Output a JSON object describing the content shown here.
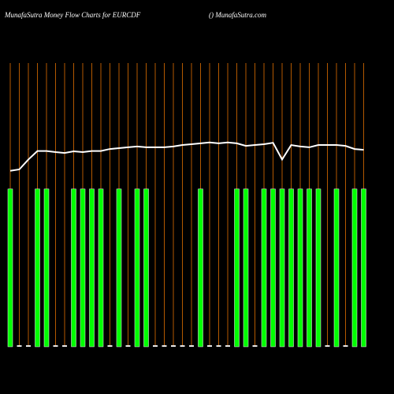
{
  "chart_data": {
    "type": "bar",
    "title": "MunafaSutra  Money Flow  Charts for EURCDF",
    "subtitle": "() MunafaSutra.com",
    "categories": [
      null,
      null,
      null,
      null,
      null,
      null,
      null,
      null,
      null,
      null,
      null,
      null,
      null,
      null,
      null,
      null,
      null,
      null,
      null,
      null,
      null,
      null,
      null,
      null,
      null,
      null,
      null,
      null,
      null,
      null,
      null,
      null,
      null,
      null,
      null,
      null,
      null,
      null,
      null,
      null
    ],
    "series": [
      {
        "type": "bar",
        "color": "#00ff00",
        "stub_color": "#ffffff",
        "values": [
          55.6,
          0.5,
          0.5,
          55.6,
          55.6,
          0.5,
          0.5,
          55.6,
          55.6,
          55.6,
          55.6,
          0.5,
          55.6,
          0.5,
          55.6,
          55.6,
          0.5,
          0.5,
          0.5,
          0.5,
          0.5,
          55.6,
          0.5,
          0.5,
          0.5,
          55.6,
          55.6,
          0.5,
          55.6,
          55.6,
          55.6,
          55.6,
          55.6,
          55.6,
          55.6,
          0.5,
          55.6,
          0.5,
          55.6,
          55.6
        ]
      },
      {
        "type": "line",
        "color": "#ffffff",
        "values": [
          62,
          62.5,
          66,
          69,
          69,
          68.6,
          68.3,
          68.9,
          68.6,
          69,
          69,
          69.7,
          70,
          70.3,
          70.6,
          70.3,
          70.3,
          70.3,
          70.6,
          71.1,
          71.4,
          71.7,
          72,
          71.7,
          72,
          71.7,
          70.8,
          71.1,
          71.4,
          71.9,
          66,
          71.1,
          70.6,
          70.3,
          71.1,
          71.1,
          71.1,
          70.8,
          69.7,
          69.4
        ]
      }
    ],
    "grid_color": "#b35900",
    "ylim": [
      0,
      100
    ]
  }
}
